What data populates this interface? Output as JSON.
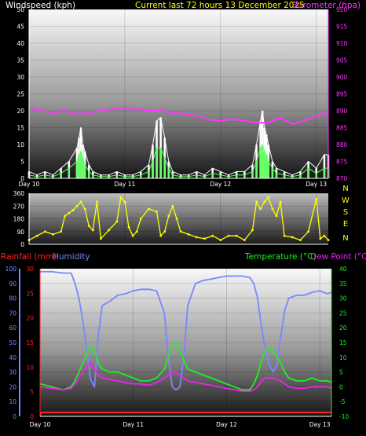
{
  "header": {
    "windspeed_label": "Windspeed (kph)",
    "current_label": "Current last 72 hours 13 December 2025",
    "barometer_label": "Barometer (hpa)"
  },
  "labels": {
    "rainfall": "Rainfall (mm)",
    "humidity": "Humidity",
    "temperature": "Temperature (°C)",
    "dewpoint": "Dew Point (°C)"
  },
  "colors": {
    "windspeed_label": "#ffffff",
    "current": "#ffff00",
    "barometer": "#ff33ff",
    "gust": "#ffffff",
    "wind_avg": "#66ff66",
    "direction": "#ffff00",
    "rainfall": "#ff2222",
    "humidity": "#7788ff",
    "temperature": "#22ee22",
    "dewpoint": "#ee22ee"
  },
  "chart_data": [
    {
      "type": "line",
      "name": "wind-barometer",
      "x_ticks": [
        "Day 10",
        "Day 11",
        "Day 12",
        "Day 13"
      ],
      "x_tick_hours": [
        0,
        24,
        48,
        72
      ],
      "x_range_hours": [
        0,
        75
      ],
      "left_axis": {
        "label": "Windspeed (kph)",
        "range": [
          0,
          50
        ],
        "ticks": [
          0,
          5,
          10,
          15,
          20,
          25,
          30,
          35,
          40,
          45,
          50
        ]
      },
      "right_axis": {
        "label": "Barometer (hpa)",
        "range": [
          870,
          920
        ],
        "ticks": [
          870,
          875,
          880,
          885,
          890,
          895,
          900,
          905,
          910,
          915,
          920
        ]
      },
      "series": [
        {
          "name": "Barometer (hpa)",
          "axis": "right",
          "x": [
            0,
            3,
            6,
            9,
            12,
            15,
            18,
            21,
            24,
            27,
            30,
            33,
            36,
            39,
            42,
            45,
            48,
            51,
            54,
            57,
            60,
            63,
            66,
            69,
            72,
            75
          ],
          "y": [
            891,
            890,
            889.5,
            890,
            889,
            889.5,
            890,
            890.5,
            891,
            890.5,
            890,
            890,
            889.5,
            889,
            888.5,
            887.5,
            887,
            887.5,
            887,
            886.5,
            886.5,
            888,
            886,
            887,
            888.5,
            889.5
          ]
        },
        {
          "axis": "left",
          "x": [
            0,
            2,
            4,
            6,
            8,
            10,
            12,
            12.5,
            13,
            13.5,
            14,
            15,
            16,
            18,
            20,
            22,
            24,
            26,
            28,
            30,
            31,
            32,
            33,
            34,
            35,
            36,
            38,
            40,
            42,
            44,
            46,
            48,
            50,
            52,
            54,
            56,
            57,
            58,
            58.5,
            59,
            59.5,
            60,
            61,
            62,
            64,
            66,
            68,
            70,
            72,
            74,
            75
          ],
          "y": [
            2,
            1,
            2,
            1,
            3,
            5,
            9,
            12,
            15,
            10,
            8,
            4,
            2,
            1,
            1,
            2,
            1,
            1,
            2,
            4,
            10,
            17,
            18,
            12,
            5,
            2,
            1,
            1,
            2,
            1,
            3,
            2,
            1,
            2,
            2,
            4,
            10,
            17,
            20,
            15,
            13,
            10,
            5,
            3,
            2,
            1,
            2,
            5,
            3,
            7,
            7
          ]
        },
        {
          "axis": "left",
          "x": [
            0,
            2,
            4,
            6,
            8,
            10,
            12,
            12.5,
            13,
            13.5,
            14,
            15,
            16,
            18,
            20,
            22,
            24,
            26,
            28,
            30,
            31,
            32,
            33,
            34,
            35,
            36,
            38,
            40,
            42,
            44,
            46,
            48,
            50,
            52,
            54,
            56,
            57,
            58,
            58.5,
            59,
            59.5,
            60,
            61,
            62,
            64,
            66,
            68,
            70,
            72,
            74,
            75
          ],
          "y": [
            1,
            0.5,
            1,
            0.5,
            1.5,
            3,
            5,
            7,
            8,
            6,
            4,
            2,
            1,
            0.5,
            0.5,
            1,
            0.5,
            0.5,
            1,
            2,
            5,
            9,
            9,
            6,
            3,
            1,
            0.5,
            0.5,
            1,
            0.5,
            1.5,
            1,
            0.5,
            1,
            1,
            2,
            5,
            9,
            10,
            8,
            7,
            5,
            3,
            1.5,
            1,
            0.5,
            1,
            3,
            1.5,
            3,
            3
          ]
        }
      ]
    },
    {
      "type": "scatter",
      "name": "wind-direction",
      "left_axis": {
        "range": [
          0,
          360
        ],
        "ticks": [
          0,
          90,
          180,
          270,
          360
        ]
      },
      "compass": [
        "N",
        "W",
        "S",
        "E",
        "N"
      ],
      "x": [
        0,
        2,
        4,
        6,
        8,
        9,
        10,
        11,
        12,
        13,
        14,
        15,
        16,
        17,
        18,
        20,
        22,
        23,
        24,
        25,
        26,
        27,
        28,
        30,
        32,
        33,
        34,
        35,
        36,
        37,
        38,
        40,
        42,
        44,
        46,
        48,
        50,
        52,
        54,
        56,
        57,
        58,
        59,
        60,
        61,
        62,
        63,
        64,
        66,
        68,
        70,
        72,
        73,
        74,
        75
      ],
      "y": [
        30,
        60,
        90,
        70,
        90,
        200,
        220,
        240,
        270,
        300,
        250,
        130,
        100,
        300,
        40,
        100,
        160,
        330,
        300,
        120,
        60,
        90,
        180,
        250,
        230,
        60,
        90,
        200,
        270,
        180,
        90,
        70,
        50,
        40,
        60,
        30,
        60,
        60,
        30,
        100,
        300,
        250,
        300,
        330,
        250,
        200,
        300,
        60,
        50,
        30,
        90,
        320,
        40,
        60,
        30
      ]
    },
    {
      "type": "line",
      "name": "rain-humidity-temp",
      "x_ticks": [
        "Day 10",
        "Day 11",
        "Day 12",
        "Day 13"
      ],
      "x_tick_hours": [
        0,
        24,
        48,
        72
      ],
      "x_range_hours": [
        0,
        75
      ],
      "left_axis": {
        "label": "Rainfall (mm)",
        "range": [
          0,
          30
        ],
        "ticks": [
          0,
          5,
          10,
          15,
          20,
          25,
          30
        ]
      },
      "humidity_axis": {
        "label": "Humidity",
        "range": [
          0,
          100
        ],
        "ticks": [
          0,
          10,
          20,
          30,
          40,
          50,
          60,
          70,
          80,
          90,
          100
        ]
      },
      "right_axis": {
        "label": "Temperature (°C) / Dew Point (°C)",
        "range": [
          -10,
          40
        ],
        "ticks": [
          -10,
          -5,
          0,
          5,
          10,
          15,
          20,
          25,
          30,
          35,
          40
        ]
      },
      "series": [
        {
          "name": "Humidity",
          "axis": "humidity",
          "x": [
            0,
            3,
            6,
            8,
            9,
            10,
            11,
            12,
            13,
            14,
            15,
            16,
            18,
            20,
            22,
            24,
            26,
            28,
            30,
            32,
            33,
            34,
            35,
            36,
            37,
            38,
            40,
            42,
            44,
            46,
            48,
            50,
            52,
            54,
            55,
            56,
            57,
            58,
            59,
            60,
            61,
            62,
            63,
            64,
            66,
            68,
            70,
            72,
            74,
            75
          ],
          "y": [
            98,
            98,
            97,
            97,
            90,
            80,
            65,
            45,
            25,
            20,
            55,
            75,
            78,
            82,
            83,
            85,
            86,
            86,
            85,
            70,
            40,
            20,
            18,
            20,
            40,
            75,
            90,
            92,
            93,
            94,
            95,
            95,
            95,
            94,
            90,
            80,
            60,
            45,
            35,
            30,
            35,
            55,
            72,
            80,
            82,
            82,
            84,
            85,
            83,
            84
          ]
        },
        {
          "name": "Temperature (°C)",
          "axis": "right",
          "x": [
            0,
            3,
            6,
            8,
            9,
            10,
            11,
            12,
            13,
            14,
            15,
            16,
            18,
            20,
            22,
            24,
            26,
            28,
            30,
            32,
            33,
            34,
            35,
            36,
            37,
            38,
            40,
            42,
            44,
            46,
            48,
            50,
            52,
            54,
            55,
            56,
            57,
            58,
            59,
            60,
            61,
            62,
            63,
            64,
            66,
            68,
            70,
            72,
            74,
            75
          ],
          "y": [
            1,
            0,
            -1,
            0,
            2,
            5,
            8,
            11,
            14,
            12,
            8,
            6,
            5,
            5,
            4,
            3,
            2,
            2,
            3,
            6,
            10,
            14,
            15,
            12,
            9,
            6,
            5,
            4,
            3,
            2,
            1,
            0,
            -1,
            -1,
            1,
            4,
            9,
            12,
            13,
            12,
            10,
            8,
            5,
            3,
            2,
            2,
            3,
            2,
            2,
            1.5
          ]
        },
        {
          "name": "Dew Point (°C)",
          "axis": "right",
          "x": [
            0,
            3,
            6,
            8,
            9,
            10,
            11,
            12,
            13,
            14,
            15,
            16,
            18,
            20,
            22,
            24,
            26,
            28,
            30,
            32,
            33,
            34,
            35,
            36,
            37,
            38,
            40,
            42,
            44,
            46,
            48,
            50,
            52,
            54,
            55,
            56,
            57,
            58,
            59,
            60,
            61,
            62,
            63,
            64,
            66,
            68,
            70,
            72,
            74,
            75
          ],
          "y": [
            0,
            -0.5,
            -1,
            -0.5,
            1,
            3,
            5,
            7,
            8,
            6,
            4,
            3,
            2.5,
            2,
            1.5,
            1,
            1,
            0.5,
            1.5,
            3,
            4,
            5,
            5,
            4,
            3,
            2,
            1.5,
            1,
            0.5,
            0,
            -0.5,
            -1,
            -1.5,
            -1.5,
            -1,
            0,
            2,
            3,
            3,
            3,
            2.5,
            2,
            1,
            0,
            -0.5,
            -0.5,
            0,
            0,
            0,
            -0.5
          ]
        },
        {
          "name": "Rainfall (mm)",
          "axis": "left",
          "x": [
            0,
            0.3,
            24,
            24.3,
            48,
            48.3,
            72,
            72.3,
            75
          ],
          "y": [
            0,
            0.8,
            0.8,
            0.8,
            0.8,
            0.8,
            0.8,
            0.8,
            0.8
          ]
        }
      ]
    }
  ]
}
